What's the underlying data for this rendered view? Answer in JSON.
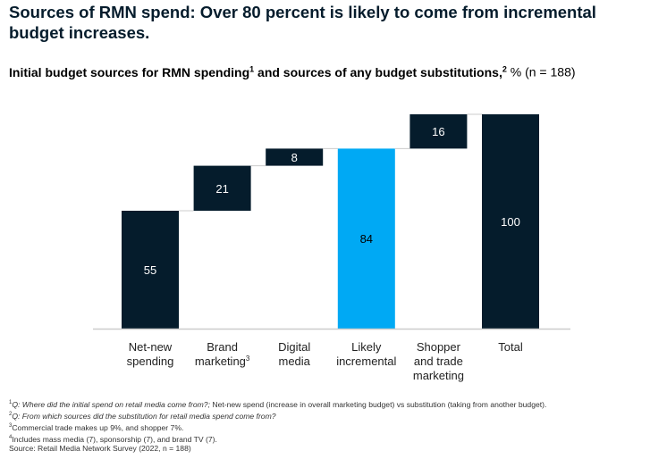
{
  "title": "Sources of RMN spend: Over 80 percent is likely to come from incremental budget increases.",
  "subtitle": {
    "part1": "Initial budget sources for RMN spending",
    "sup1": "1",
    "part2": " and sources of any budget substitutions,",
    "sup2": "2",
    "unit": " % (n = 188)"
  },
  "colors": {
    "dark": "#051c2c",
    "highlight": "#00a9f4",
    "connector": "#cccccc"
  },
  "chart_data": {
    "type": "waterfall",
    "categories": [
      "Net-new spending",
      "Brand marketing",
      "Digital media",
      "Likely incremental",
      "Shopper and trade marketing",
      "Total"
    ],
    "category_label_lines": [
      [
        "Net-new",
        "spending"
      ],
      [
        "Brand",
        "marketing"
      ],
      [
        "Digital",
        "media"
      ],
      [
        "Likely",
        "incremental"
      ],
      [
        "Shopper",
        "and trade",
        "marketing"
      ],
      [
        "Total"
      ]
    ],
    "category_footnote": [
      null,
      "3",
      null,
      null,
      null,
      null
    ],
    "values": [
      55,
      21,
      8,
      84,
      16,
      100
    ],
    "bar_kind": [
      "total",
      "delta",
      "delta",
      "total",
      "delta",
      "total"
    ],
    "highlight": [
      false,
      false,
      false,
      true,
      false,
      false
    ],
    "ylim": [
      0,
      100
    ],
    "grid": false
  },
  "footnotes": [
    {
      "sup": "1",
      "italic": "Q: Where did the initial spend on retail media come from?;",
      "text": " Net-new spend (increase in overall marketing budget) vs substitution (taking from another budget)."
    },
    {
      "sup": "2",
      "italic": "Q: From which sources did the substitution for retail media spend come from?",
      "text": ""
    },
    {
      "sup": "3",
      "italic": "",
      "text": "Commercial trade makes up 9%, and shopper 7%."
    },
    {
      "sup": "4",
      "italic": "",
      "text": "Includes mass media (7), sponsorship (7), and brand TV (7)."
    },
    {
      "sup": "",
      "italic": "",
      "text": " Source: Retail Media Network Survey (2022, n = 188)"
    }
  ]
}
